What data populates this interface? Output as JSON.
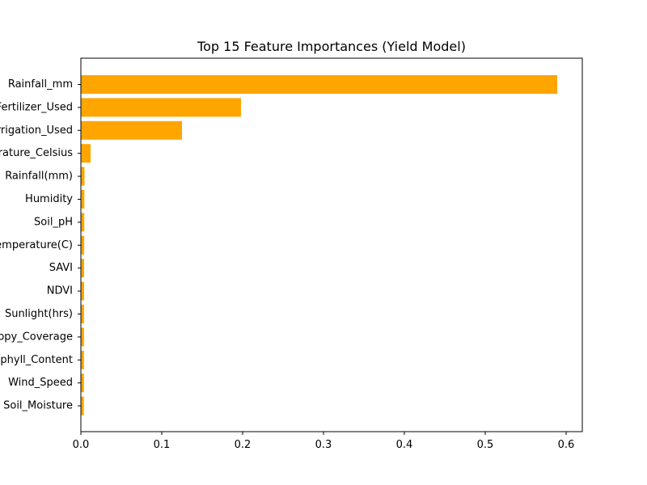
{
  "chart_data": {
    "type": "bar",
    "orientation": "horizontal",
    "title": "Top 15 Feature Importances (Yield Model)",
    "xlabel": "",
    "ylabel": "",
    "categories": [
      "Rainfall_mm",
      "Fertilizer_Used",
      "Irrigation_Used",
      "Temperature_Celsius",
      "Rainfall(mm)",
      "Humidity",
      "Soil_pH",
      "Temperature(C)",
      "SAVI",
      "NDVI",
      "Sunlight(hrs)",
      "Canopy_Coverage",
      "Chlorophyll_Content",
      "Wind_Speed",
      "Soil_Moisture"
    ],
    "values": [
      0.589,
      0.198,
      0.125,
      0.012,
      0.0045,
      0.0043,
      0.0042,
      0.0041,
      0.004,
      0.004,
      0.0039,
      0.0039,
      0.0038,
      0.0038,
      0.0037
    ],
    "xlim": [
      0,
      0.62
    ],
    "xticks": [
      0.0,
      0.1,
      0.2,
      0.3,
      0.4,
      0.5,
      0.6
    ],
    "xtick_labels": [
      "0.0",
      "0.1",
      "0.2",
      "0.3",
      "0.4",
      "0.5",
      "0.6"
    ],
    "grid": false,
    "legend": "none",
    "bar_color": "#ffa500"
  }
}
